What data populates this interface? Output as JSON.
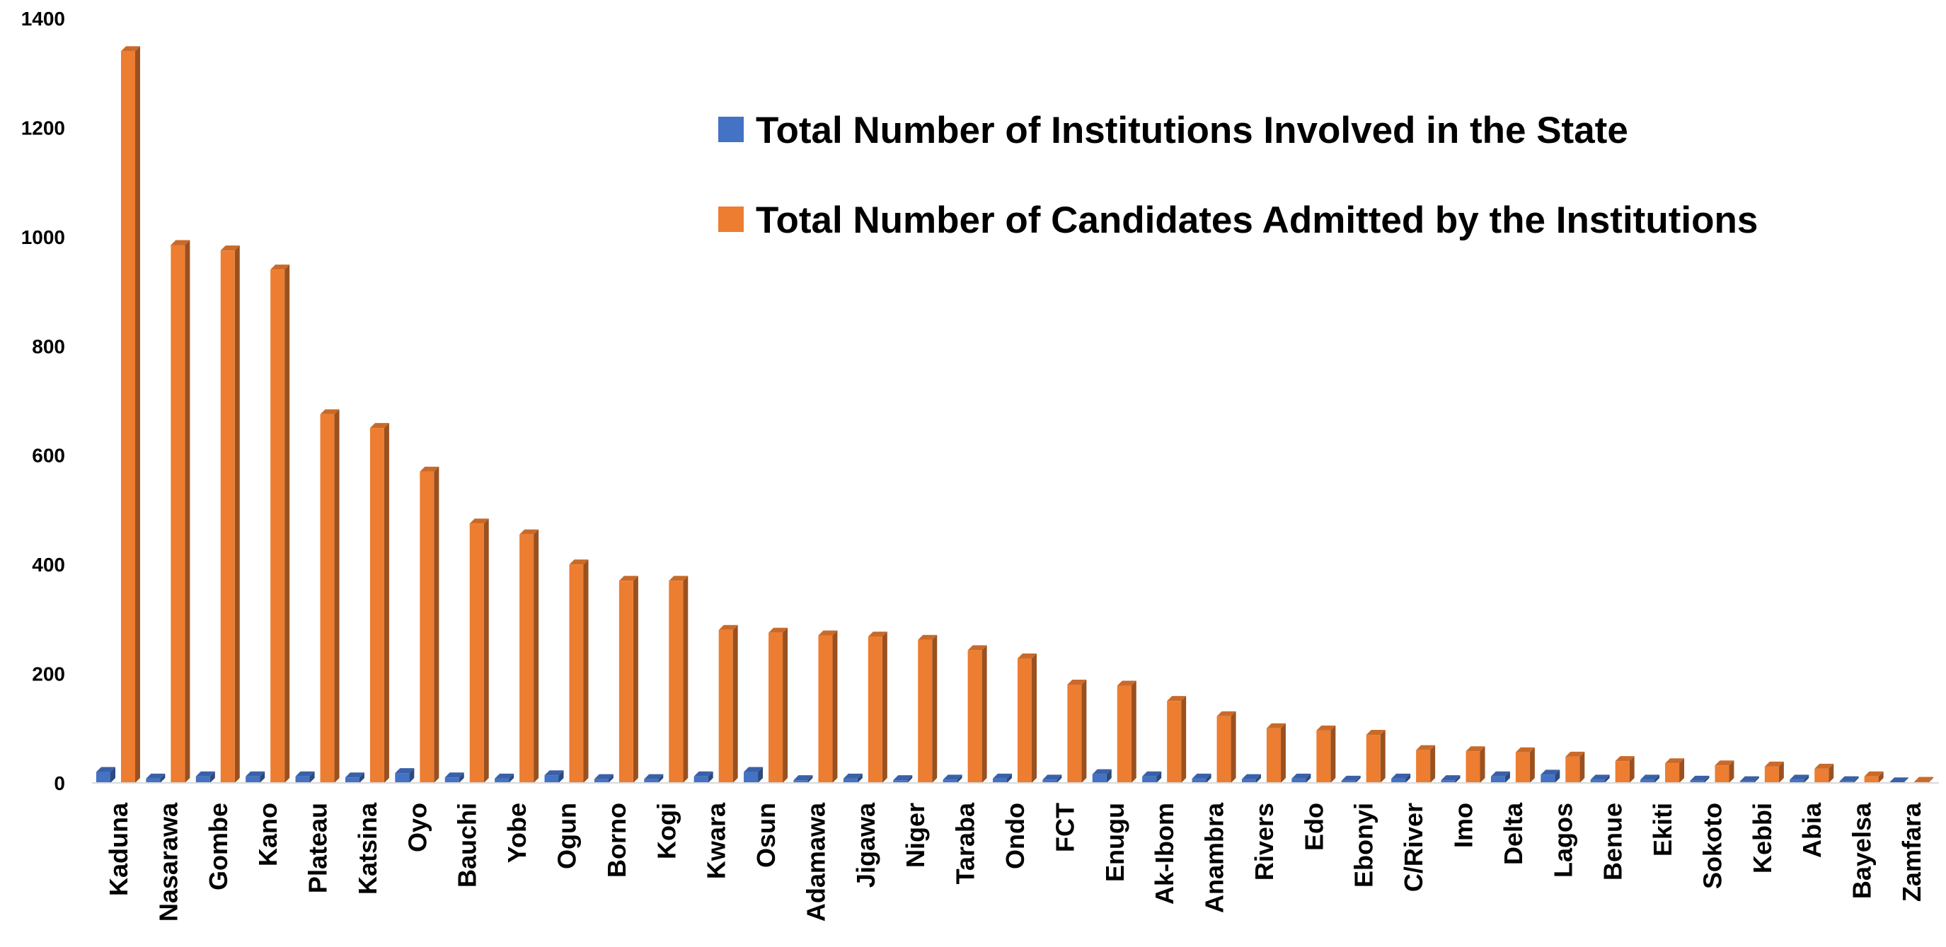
{
  "chart_data": {
    "type": "bar",
    "categories": [
      "Kaduna",
      "Nasarawa",
      "Gombe",
      "Kano",
      "Plateau",
      "Katsina",
      "Oyo",
      "Bauchi",
      "Yobe",
      "Ogun",
      "Borno",
      "Kogi",
      "Kwara",
      "Osun",
      "Adamawa",
      "Jigawa",
      "Niger",
      "Taraba",
      "Ondo",
      "FCT",
      "Enugu",
      "Ak-Ibom",
      "Anambra",
      "Rivers",
      "Edo",
      "Ebonyi",
      "C/River",
      "Imo",
      "Delta",
      "Lagos",
      "Benue",
      "Ekiti",
      "Sokoto",
      "Kebbi",
      "Abia",
      "Bayelsa",
      "Zamfara"
    ],
    "series": [
      {
        "name": "Total Number of Institutions Involved in the State",
        "color": "#4472c4",
        "values": [
          20,
          8,
          12,
          12,
          12,
          10,
          18,
          10,
          8,
          14,
          7,
          7,
          12,
          20,
          5,
          8,
          5,
          6,
          8,
          6,
          16,
          12,
          8,
          7,
          8,
          4,
          8,
          5,
          12,
          15,
          6,
          6,
          4,
          3,
          6,
          3,
          1
        ]
      },
      {
        "name": "Total Number of Candidates Admitted by the Institutions",
        "color": "#ed7d31",
        "values": [
          1340,
          985,
          975,
          940,
          675,
          650,
          570,
          475,
          455,
          400,
          370,
          370,
          280,
          275,
          270,
          268,
          262,
          243,
          228,
          180,
          178,
          150,
          122,
          100,
          96,
          88,
          60,
          58,
          56,
          48,
          40,
          36,
          32,
          30,
          26,
          12,
          2
        ]
      }
    ],
    "ylim": [
      0,
      1400
    ],
    "yticks": [
      0,
      200,
      400,
      600,
      800,
      1000,
      1200,
      1400
    ],
    "grid": false,
    "legend": "top-right"
  }
}
